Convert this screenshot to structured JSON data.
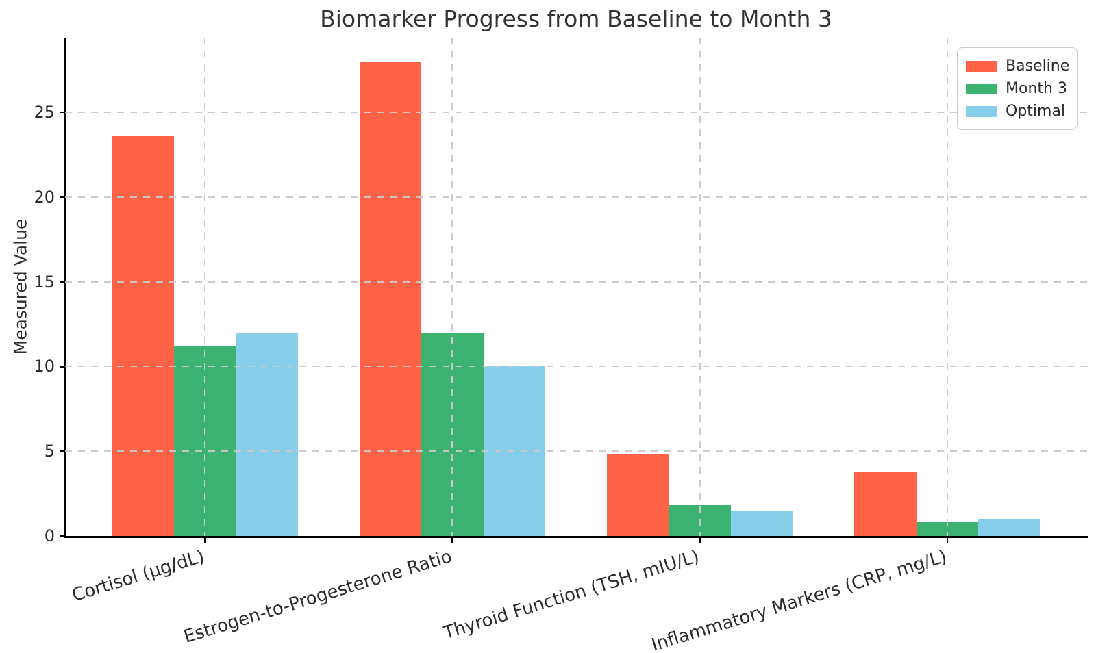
{
  "chart_data": {
    "type": "bar",
    "title": "Biomarker Progress from Baseline to Month 3",
    "xlabel": "",
    "ylabel": "Measured Value",
    "categories": [
      "Cortisol (µg/dL)",
      "Estrogen-to-Progesterone Ratio",
      "Thyroid Function (TSH, mIU/L)",
      "Inflammatory Markers (CRP, mg/L)"
    ],
    "series": [
      {
        "name": "Baseline",
        "color": "#FF6347",
        "values": [
          23.6,
          28.0,
          4.8,
          3.8
        ]
      },
      {
        "name": "Month 3",
        "color": "#3CB371",
        "values": [
          11.2,
          12.0,
          1.8,
          0.8
        ]
      },
      {
        "name": "Optimal",
        "color": "#87CEEB",
        "values": [
          12.0,
          10.0,
          1.5,
          1.0
        ]
      }
    ],
    "ylim": [
      0,
      29.4
    ],
    "yticks": [
      0,
      5,
      10,
      15,
      20,
      25
    ],
    "xlim": [
      -0.565,
      3.565
    ],
    "bar_width": 0.25,
    "grid": "dashed, drawn above bars, horizontal at yticks and vertical at group centers",
    "legend_position": "upper right",
    "xtick_rotation_deg": 17
  },
  "colors": {
    "background": "#ffffff",
    "grid": "#c9c9c9",
    "spine": "#000000",
    "text": "#2d2d2d",
    "title_text": "#333333"
  }
}
